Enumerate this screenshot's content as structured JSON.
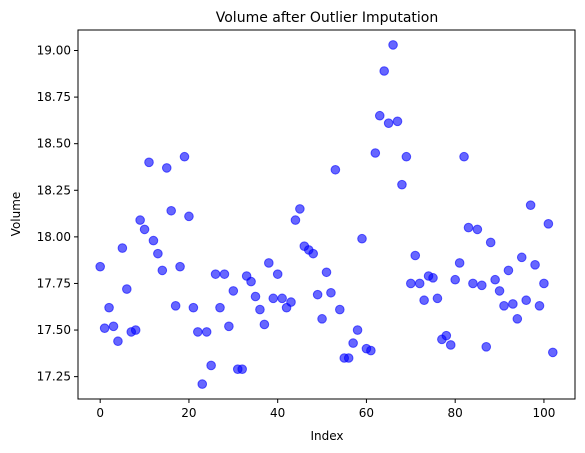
{
  "chart_data": {
    "type": "scatter",
    "title": "Volume after Outlier Imputation",
    "xlabel": "Index",
    "ylabel": "Volume",
    "xlim": [
      -5,
      107
    ],
    "ylim": [
      17.13,
      19.11
    ],
    "xticks": [
      0,
      20,
      40,
      60,
      80,
      100
    ],
    "yticks": [
      17.25,
      17.5,
      17.75,
      18.0,
      18.25,
      18.5,
      18.75,
      19.0
    ],
    "ytick_labels": [
      "17.25",
      "17.50",
      "17.75",
      "18.00",
      "18.25",
      "18.50",
      "18.75",
      "19.00"
    ],
    "grid": false,
    "marker_color": "#0000ff",
    "marker_alpha": 0.6,
    "points": [
      [
        0,
        17.84
      ],
      [
        1,
        17.51
      ],
      [
        2,
        17.62
      ],
      [
        3,
        17.52
      ],
      [
        4,
        17.44
      ],
      [
        5,
        17.94
      ],
      [
        6,
        17.72
      ],
      [
        7,
        17.49
      ],
      [
        8,
        17.5
      ],
      [
        9,
        18.09
      ],
      [
        10,
        18.04
      ],
      [
        11,
        18.4
      ],
      [
        12,
        17.98
      ],
      [
        13,
        17.91
      ],
      [
        14,
        17.82
      ],
      [
        15,
        18.37
      ],
      [
        16,
        18.14
      ],
      [
        17,
        17.63
      ],
      [
        18,
        17.84
      ],
      [
        19,
        18.43
      ],
      [
        20,
        18.11
      ],
      [
        21,
        17.62
      ],
      [
        22,
        17.49
      ],
      [
        23,
        17.21
      ],
      [
        24,
        17.49
      ],
      [
        25,
        17.31
      ],
      [
        26,
        17.8
      ],
      [
        27,
        17.62
      ],
      [
        28,
        17.8
      ],
      [
        29,
        17.52
      ],
      [
        30,
        17.71
      ],
      [
        31,
        17.29
      ],
      [
        32,
        17.29
      ],
      [
        33,
        17.79
      ],
      [
        34,
        17.76
      ],
      [
        35,
        17.68
      ],
      [
        36,
        17.61
      ],
      [
        37,
        17.53
      ],
      [
        38,
        17.86
      ],
      [
        39,
        17.67
      ],
      [
        40,
        17.8
      ],
      [
        41,
        17.67
      ],
      [
        42,
        17.62
      ],
      [
        43,
        17.65
      ],
      [
        44,
        18.09
      ],
      [
        45,
        18.15
      ],
      [
        46,
        17.95
      ],
      [
        47,
        17.93
      ],
      [
        48,
        17.91
      ],
      [
        49,
        17.69
      ],
      [
        50,
        17.56
      ],
      [
        51,
        17.81
      ],
      [
        52,
        17.7
      ],
      [
        53,
        18.36
      ],
      [
        54,
        17.61
      ],
      [
        55,
        17.35
      ],
      [
        56,
        17.35
      ],
      [
        57,
        17.43
      ],
      [
        58,
        17.5
      ],
      [
        59,
        17.99
      ],
      [
        60,
        17.4
      ],
      [
        61,
        17.39
      ],
      [
        62,
        18.45
      ],
      [
        63,
        18.65
      ],
      [
        64,
        18.89
      ],
      [
        65,
        18.61
      ],
      [
        66,
        19.03
      ],
      [
        67,
        18.62
      ],
      [
        68,
        18.28
      ],
      [
        69,
        18.43
      ],
      [
        70,
        17.75
      ],
      [
        71,
        17.9
      ],
      [
        72,
        17.75
      ],
      [
        73,
        17.66
      ],
      [
        74,
        17.79
      ],
      [
        75,
        17.78
      ],
      [
        76,
        17.67
      ],
      [
        77,
        17.45
      ],
      [
        78,
        17.47
      ],
      [
        79,
        17.42
      ],
      [
        80,
        17.77
      ],
      [
        81,
        17.86
      ],
      [
        82,
        18.43
      ],
      [
        83,
        18.05
      ],
      [
        84,
        17.75
      ],
      [
        85,
        18.04
      ],
      [
        86,
        17.74
      ],
      [
        87,
        17.41
      ],
      [
        88,
        17.97
      ],
      [
        89,
        17.77
      ],
      [
        90,
        17.71
      ],
      [
        91,
        17.63
      ],
      [
        92,
        17.82
      ],
      [
        93,
        17.64
      ],
      [
        94,
        17.56
      ],
      [
        95,
        17.89
      ],
      [
        96,
        17.66
      ],
      [
        97,
        18.17
      ],
      [
        98,
        17.85
      ],
      [
        99,
        17.63
      ],
      [
        100,
        17.75
      ],
      [
        101,
        18.07
      ],
      [
        102,
        17.38
      ]
    ]
  }
}
